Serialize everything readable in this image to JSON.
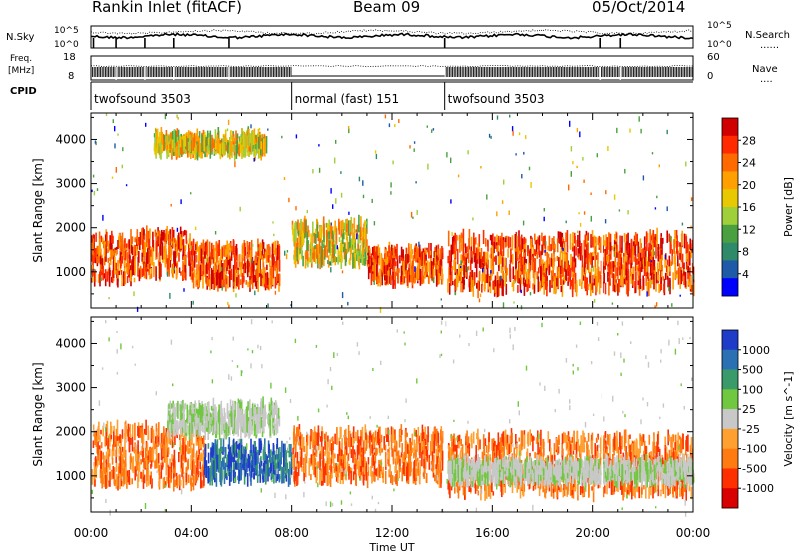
{
  "header": {
    "station": "Rankin Inlet (fitACF)",
    "beam": "Beam 09",
    "date": "05/Oct/2014"
  },
  "left_labels": {
    "nsky": "N.Sky",
    "freq_line1": "Freq.",
    "freq_line2": "[MHz]",
    "cpid": "CPID"
  },
  "right_labels": {
    "nsearch": "N.Search",
    "nsearch_dots": "......",
    "nave": "Nave",
    "nave_dots": "...."
  },
  "noise_axis": {
    "left_top": "10^5",
    "left_bottom": "10^0",
    "right_top": "10^5",
    "right_bottom": "10^0"
  },
  "freq_axis": {
    "left_top": "18",
    "left_bottom": "8",
    "right_top": "60",
    "right_bottom": "0"
  },
  "cpid_segments": [
    {
      "label": "twofsound 3503",
      "start_h": 0.0,
      "end_h": 8.0
    },
    {
      "label": "normal (fast) 151",
      "start_h": 8.0,
      "end_h": 14.1
    },
    {
      "label": "twofsound 3503",
      "start_h": 14.1,
      "end_h": 24.0
    }
  ],
  "chart_data": [
    {
      "type": "heatmap",
      "panel": "power",
      "ylabel": "Slant Range [km]",
      "xlabel": "",
      "xlim_h": [
        0,
        24
      ],
      "ylim_km": [
        180,
        4600
      ],
      "x_ticks": [
        "00:00",
        "04:00",
        "08:00",
        "12:00",
        "16:00",
        "20:00",
        "00:00"
      ],
      "y_ticks": [
        1000,
        2000,
        3000,
        4000
      ],
      "colorbar": {
        "label": "Power [dB]",
        "ticks": [
          "28",
          "24",
          "20",
          "16",
          "12",
          "8",
          "4"
        ],
        "colors": [
          "#d00000",
          "#ff2a00",
          "#ff6a00",
          "#ffa000",
          "#e8c800",
          "#9fcf3a",
          "#4aa040",
          "#2f8a6a",
          "#1e5aa8",
          "#0000ff"
        ]
      },
      "echo_bands": [
        {
          "start_h": 0.0,
          "end_h": 2.0,
          "range_km": [
            800,
            1800
          ],
          "level": "strong"
        },
        {
          "start_h": 2.0,
          "end_h": 4.0,
          "range_km": [
            900,
            1900
          ],
          "level": "strong"
        },
        {
          "start_h": 4.0,
          "end_h": 7.5,
          "range_km": [
            700,
            1600
          ],
          "level": "strong"
        },
        {
          "start_h": 8.0,
          "end_h": 11.0,
          "range_km": [
            1200,
            2100
          ],
          "level": "medium"
        },
        {
          "start_h": 11.0,
          "end_h": 14.0,
          "range_km": [
            800,
            1500
          ],
          "level": "strong"
        },
        {
          "start_h": 14.2,
          "end_h": 24.0,
          "range_km": [
            600,
            1800
          ],
          "level": "strong"
        },
        {
          "start_h": 2.5,
          "end_h": 7.0,
          "range_km": [
            3700,
            4100
          ],
          "level": "medium"
        }
      ]
    },
    {
      "type": "heatmap",
      "panel": "velocity",
      "ylabel": "Slant Range [km]",
      "xlabel": "Time UT",
      "xlim_h": [
        0,
        24
      ],
      "ylim_km": [
        180,
        4600
      ],
      "x_ticks": [
        "00:00",
        "04:00",
        "08:00",
        "12:00",
        "16:00",
        "20:00",
        "00:00"
      ],
      "y_ticks": [
        1000,
        2000,
        3000,
        4000
      ],
      "colorbar": {
        "label": "Velocity [m s^-1]",
        "ticks": [
          "1000",
          "500",
          "100",
          "25",
          "-25",
          "-100",
          "-500",
          "-1000"
        ],
        "colors": [
          "#1e3cc8",
          "#2c70b4",
          "#3a9a6a",
          "#70c840",
          "#c8c8c8",
          "#ffa030",
          "#ff7a10",
          "#ff3000",
          "#d80000"
        ]
      },
      "echo_bands": [
        {
          "start_h": 0.0,
          "end_h": 4.5,
          "range_km": [
            800,
            2100
          ],
          "level": "away"
        },
        {
          "start_h": 4.5,
          "end_h": 8.0,
          "range_km": [
            900,
            1700
          ],
          "level": "toward"
        },
        {
          "start_h": 8.0,
          "end_h": 14.0,
          "range_km": [
            900,
            2000
          ],
          "level": "away"
        },
        {
          "start_h": 14.2,
          "end_h": 24.0,
          "range_km": [
            600,
            1900
          ],
          "level": "away"
        },
        {
          "start_h": 14.2,
          "end_h": 24.0,
          "range_km": [
            900,
            1300
          ],
          "level": "low"
        },
        {
          "start_h": 3.0,
          "end_h": 7.5,
          "range_km": [
            2000,
            2600
          ],
          "level": "low"
        }
      ]
    }
  ]
}
